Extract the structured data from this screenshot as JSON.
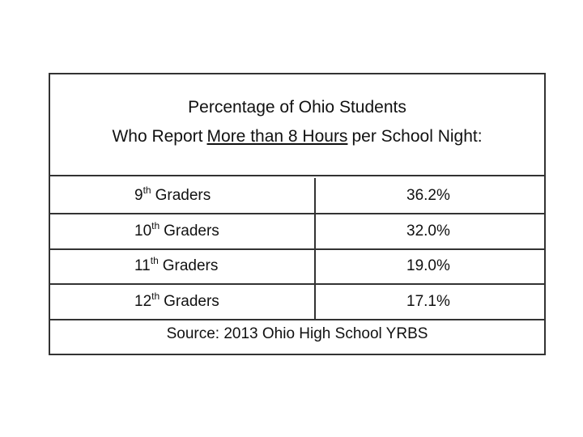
{
  "title": {
    "line1": "Percentage of Ohio Students",
    "line2": [
      "Who Report",
      "More than 8 Hours",
      "per School Night:"
    ]
  },
  "table": {
    "rows": [
      {
        "grade": "9",
        "suffix": "th",
        "label": "Graders",
        "value": "36.2%"
      },
      {
        "grade": "10",
        "suffix": "th",
        "label": "Graders",
        "value": "32.0%"
      },
      {
        "grade": "11",
        "suffix": "th",
        "label": "Graders",
        "value": "19.0%"
      },
      {
        "grade": "12",
        "suffix": "th",
        "label": "Graders",
        "value": "17.1%"
      }
    ]
  },
  "source": "Source: 2013 Ohio High School YRBS"
}
